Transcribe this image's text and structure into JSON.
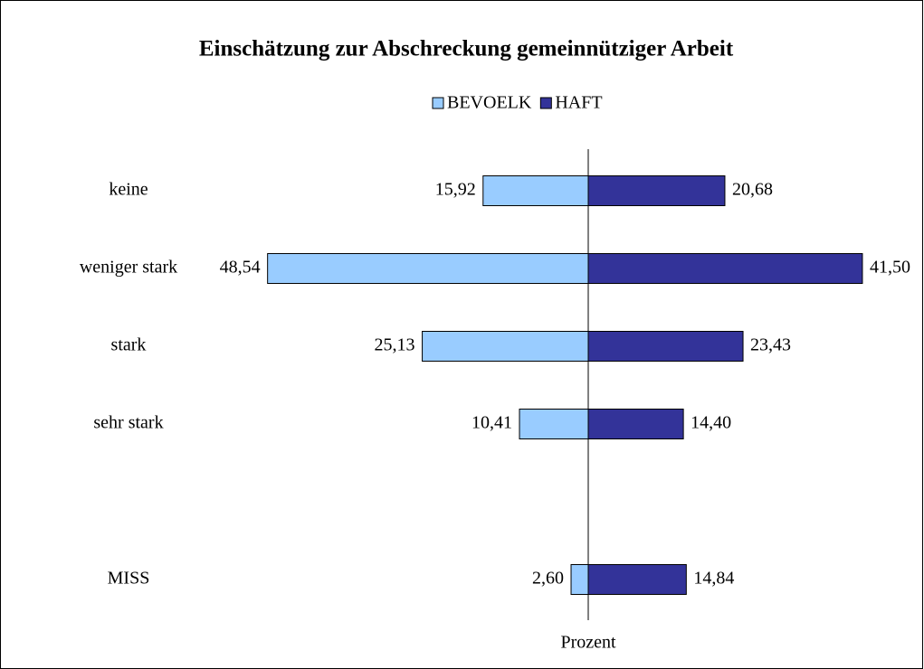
{
  "chart_data": {
    "type": "butterfly-bar",
    "title": "Einschätzung zur Abschreckung gemeinnütziger Arbeit",
    "x_label": "Prozent",
    "categories": [
      "keine",
      "weniger stark",
      "stark",
      "sehr stark",
      null,
      "MISS"
    ],
    "series": [
      {
        "name": "BEVOELK",
        "color": "#99ccff",
        "values": [
          15.92,
          48.54,
          25.13,
          10.41,
          null,
          2.6
        ],
        "value_labels": [
          "15,92",
          "48,54",
          "25,13",
          "10,41",
          null,
          "2,60"
        ]
      },
      {
        "name": "HAFT",
        "color": "#333399",
        "values": [
          20.68,
          41.5,
          23.43,
          14.4,
          null,
          14.84
        ],
        "value_labels": [
          "20,68",
          "41,50",
          "23,43",
          "14,40",
          null,
          "14,84"
        ]
      }
    ],
    "xlim": [
      -50,
      50
    ]
  }
}
